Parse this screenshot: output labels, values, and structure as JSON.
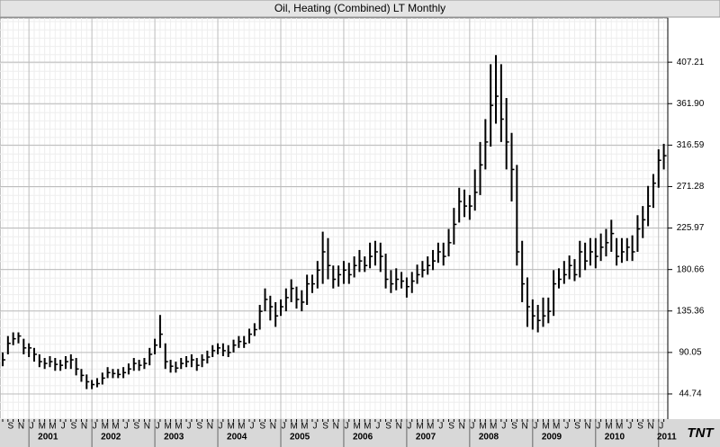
{
  "chart_data": {
    "type": "ohlc",
    "title": "Oil, Heating (Combined) LT Monthly",
    "logo": "TNT",
    "color": "#000000",
    "grid": true,
    "ylim": [
      17.2,
      455.5
    ],
    "yticks": [
      44.74,
      90.05,
      135.36,
      180.66,
      225.97,
      271.28,
      {
        "value": 316.59,
        "label": "316.59"
      },
      {
        "value": 361.9,
        "label": "361.90"
      },
      407.21
    ],
    "years": [
      "2001",
      "2002",
      "2003",
      "2004",
      "2005",
      "2006",
      "2007",
      "2008",
      "2009",
      "2010",
      "2011"
    ],
    "categories": [
      null,
      "S",
      null,
      "N",
      null,
      "J",
      null,
      "M",
      null,
      "M",
      null,
      "J",
      null,
      "S",
      null,
      "N",
      null,
      "J",
      null,
      "M",
      null,
      "M",
      null,
      "J",
      null,
      "S",
      null,
      "N",
      null,
      "J",
      null,
      "M",
      null,
      "M",
      null,
      "J",
      null,
      "S",
      null,
      "N",
      null,
      "J",
      null,
      "M",
      null,
      "M",
      null,
      "J",
      null,
      "S",
      null,
      "N",
      null,
      "J",
      null,
      "M",
      null,
      "M",
      null,
      "J",
      null,
      "S",
      null,
      "N",
      null,
      "J",
      null,
      "M",
      null,
      "M",
      null,
      "J",
      null,
      "S",
      null,
      "N",
      null,
      "J",
      null,
      "M",
      null,
      "M",
      null,
      "J",
      null,
      "S",
      null,
      "N",
      null,
      "J",
      null,
      "M",
      null,
      "M",
      null,
      "J",
      null,
      "S",
      null,
      "N",
      null,
      "J",
      null,
      "M",
      null,
      "M",
      null,
      "J",
      null,
      "S",
      null,
      "N",
      null,
      "J",
      null,
      "M",
      null,
      "M",
      null,
      "J",
      null,
      "S",
      null,
      "N",
      null,
      "J",
      null
    ],
    "high": [
      90,
      108,
      112,
      112,
      105,
      100,
      95,
      88,
      84,
      86,
      84,
      82,
      86,
      88,
      84,
      72,
      66,
      60,
      62,
      68,
      74,
      72,
      72,
      74,
      78,
      84,
      82,
      84,
      95,
      105,
      131,
      100,
      82,
      80,
      84,
      86,
      88,
      84,
      88,
      92,
      98,
      100,
      100,
      98,
      104,
      108,
      108,
      116,
      122,
      142,
      160,
      152,
      145,
      148,
      160,
      170,
      162,
      158,
      175,
      175,
      190,
      222,
      215,
      185,
      185,
      190,
      188,
      195,
      202,
      195,
      210,
      212,
      210,
      198,
      180,
      182,
      178,
      172,
      178,
      186,
      190,
      195,
      202,
      210,
      210,
      225,
      248,
      270,
      268,
      262,
      290,
      320,
      345,
      405,
      415,
      405,
      368,
      330,
      295,
      212,
      172,
      148,
      142,
      150,
      150,
      180,
      182,
      190,
      196,
      192,
      212,
      210,
      215,
      215,
      220,
      225,
      235,
      215,
      215,
      215,
      218,
      240,
      250,
      272,
      285,
      312,
      318
    ],
    "low": [
      75,
      88,
      98,
      100,
      88,
      85,
      80,
      74,
      72,
      74,
      70,
      70,
      72,
      72,
      65,
      58,
      50,
      50,
      52,
      55,
      62,
      62,
      62,
      62,
      66,
      70,
      70,
      72,
      76,
      88,
      95,
      72,
      68,
      68,
      72,
      74,
      74,
      70,
      74,
      78,
      85,
      88,
      86,
      85,
      90,
      95,
      95,
      100,
      108,
      115,
      135,
      125,
      118,
      130,
      135,
      145,
      138,
      135,
      142,
      155,
      160,
      165,
      170,
      160,
      162,
      165,
      165,
      172,
      178,
      178,
      182,
      185,
      178,
      160,
      155,
      158,
      160,
      150,
      155,
      165,
      172,
      175,
      180,
      188,
      185,
      195,
      208,
      232,
      238,
      235,
      245,
      262,
      290,
      315,
      340,
      320,
      290,
      255,
      185,
      145,
      118,
      115,
      112,
      118,
      122,
      130,
      160,
      165,
      170,
      168,
      172,
      180,
      185,
      182,
      190,
      195,
      200,
      185,
      188,
      190,
      190,
      200,
      215,
      228,
      248,
      270,
      290
    ],
    "close": [
      82,
      100,
      105,
      108,
      95,
      95,
      88,
      80,
      78,
      80,
      77,
      76,
      80,
      82,
      72,
      65,
      58,
      55,
      56,
      62,
      68,
      67,
      66,
      68,
      72,
      78,
      76,
      78,
      88,
      98,
      110,
      80,
      75,
      73,
      78,
      80,
      82,
      76,
      82,
      85,
      92,
      95,
      92,
      90,
      98,
      102,
      100,
      110,
      115,
      135,
      148,
      140,
      130,
      140,
      150,
      160,
      148,
      145,
      165,
      165,
      180,
      200,
      185,
      170,
      175,
      180,
      175,
      185,
      190,
      185,
      195,
      200,
      195,
      170,
      165,
      170,
      168,
      162,
      168,
      175,
      180,
      185,
      190,
      200,
      195,
      210,
      230,
      255,
      250,
      250,
      265,
      295,
      320,
      360,
      370,
      345,
      320,
      290,
      200,
      165,
      140,
      130,
      125,
      130,
      135,
      165,
      170,
      175,
      185,
      175,
      200,
      190,
      200,
      195,
      205,
      210,
      220,
      195,
      200,
      205,
      200,
      225,
      235,
      250,
      275,
      300,
      305
    ]
  }
}
